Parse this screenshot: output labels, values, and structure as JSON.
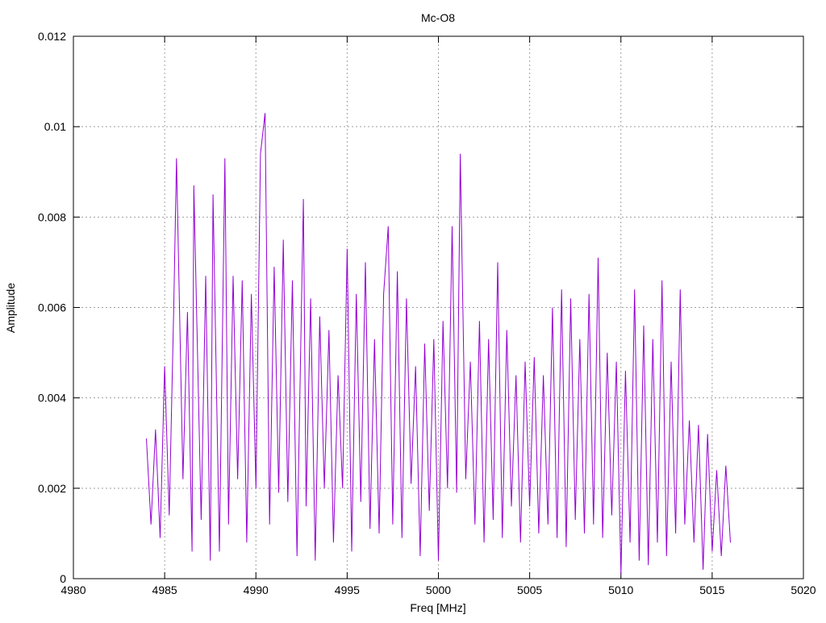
{
  "chart_data": {
    "type": "line",
    "title": "Mc-O8",
    "xlabel": "Freq [MHz]",
    "ylabel": "Amplitude",
    "xlim": [
      4980,
      5020
    ],
    "ylim": [
      0,
      0.012
    ],
    "grid": true,
    "xticks": [
      "4980",
      "4985",
      "4990",
      "4995",
      "5000",
      "5005",
      "5010",
      "5015",
      "5020"
    ],
    "xtick_values": [
      4980,
      4985,
      4990,
      4995,
      5000,
      5005,
      5010,
      5015,
      5020
    ],
    "yticks": [
      "0",
      "0.002",
      "0.004",
      "0.006",
      "0.008",
      "0.01",
      "0.012"
    ],
    "ytick_values": [
      0,
      0.002,
      0.004,
      0.006,
      0.008,
      0.01,
      0.012
    ],
    "series_color": "#9400d3",
    "series": [
      {
        "name": "Mc-O8",
        "x": [
          4984.0,
          4984.25,
          4984.5,
          4984.75,
          4985.0,
          4985.25,
          4985.5,
          4985.65,
          4986.0,
          4986.25,
          4986.5,
          4986.6,
          4987.0,
          4987.25,
          4987.5,
          4987.65,
          4988.0,
          4988.3,
          4988.5,
          4988.75,
          4989.0,
          4989.25,
          4989.5,
          4989.75,
          4990.0,
          4990.25,
          4990.5,
          4990.75,
          4991.0,
          4991.25,
          4991.5,
          4991.75,
          4992.0,
          4992.25,
          4992.6,
          4992.75,
          4993.0,
          4993.25,
          4993.5,
          4993.75,
          4994.0,
          4994.25,
          4994.5,
          4994.75,
          4995.0,
          4995.25,
          4995.5,
          4995.75,
          4996.0,
          4996.25,
          4996.5,
          4996.75,
          4997.0,
          4997.25,
          4997.5,
          4997.75,
          4998.0,
          4998.25,
          4998.5,
          4998.75,
          4999.0,
          4999.25,
          4999.5,
          4999.75,
          5000.0,
          5000.25,
          5000.5,
          5000.75,
          5001.0,
          5001.2,
          5001.5,
          5001.75,
          5002.0,
          5002.25,
          5002.5,
          5002.75,
          5003.0,
          5003.25,
          5003.5,
          5003.75,
          5004.0,
          5004.25,
          5004.5,
          5004.75,
          5005.0,
          5005.25,
          5005.5,
          5005.75,
          5006.0,
          5006.25,
          5006.5,
          5006.75,
          5007.0,
          5007.25,
          5007.5,
          5007.75,
          5008.0,
          5008.25,
          5008.5,
          5008.75,
          5009.0,
          5009.25,
          5009.5,
          5009.75,
          5010.0,
          5010.25,
          5010.5,
          5010.75,
          5011.0,
          5011.25,
          5011.5,
          5011.75,
          5012.0,
          5012.25,
          5012.5,
          5012.75,
          5013.0,
          5013.25,
          5013.5,
          5013.75,
          5014.0,
          5014.25,
          5014.5,
          5014.75,
          5015.0,
          5015.25,
          5015.5,
          5015.75,
          5016.0
        ],
        "y": [
          0.0031,
          0.0012,
          0.0033,
          0.0009,
          0.0047,
          0.0014,
          0.006,
          0.0093,
          0.0022,
          0.0059,
          0.0006,
          0.0087,
          0.0013,
          0.0067,
          0.0004,
          0.0085,
          0.0006,
          0.0093,
          0.0012,
          0.0067,
          0.0022,
          0.0066,
          0.0008,
          0.0063,
          0.002,
          0.0094,
          0.0103,
          0.0012,
          0.0069,
          0.0019,
          0.0075,
          0.0017,
          0.0066,
          0.0005,
          0.0084,
          0.0016,
          0.0062,
          0.0004,
          0.0058,
          0.002,
          0.0055,
          0.0008,
          0.0045,
          0.002,
          0.0073,
          0.0006,
          0.0063,
          0.0017,
          0.007,
          0.0011,
          0.0053,
          0.001,
          0.0063,
          0.0078,
          0.0012,
          0.0068,
          0.0009,
          0.0062,
          0.0021,
          0.0047,
          0.0005,
          0.0052,
          0.0015,
          0.0053,
          0.0004,
          0.0057,
          0.002,
          0.0078,
          0.0019,
          0.0094,
          0.0022,
          0.0048,
          0.0012,
          0.0057,
          0.0008,
          0.0053,
          0.0013,
          0.007,
          0.0009,
          0.0055,
          0.0016,
          0.0045,
          0.0008,
          0.0048,
          0.0016,
          0.0049,
          0.001,
          0.0045,
          0.0012,
          0.006,
          0.0009,
          0.0064,
          0.0007,
          0.0062,
          0.0013,
          0.0053,
          0.001,
          0.0063,
          0.0012,
          0.0071,
          0.0009,
          0.005,
          0.0014,
          0.0048,
          0.0001,
          0.0046,
          0.0008,
          0.0064,
          0.0004,
          0.0056,
          0.0003,
          0.0053,
          0.0008,
          0.0066,
          0.0005,
          0.0048,
          0.001,
          0.0064,
          0.0012,
          0.0035,
          0.0008,
          0.0034,
          0.0002,
          0.0032,
          0.0006,
          0.0024,
          0.0005,
          0.0025,
          0.0008
        ]
      }
    ]
  }
}
